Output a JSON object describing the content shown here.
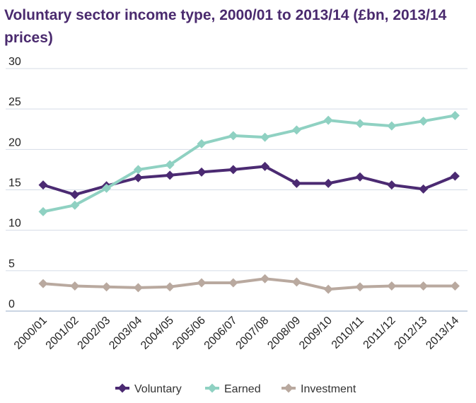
{
  "title": "Voluntary sector income type, 2000/01 to 2013/14 (£bn, 2013/14 prices)",
  "chart_data": {
    "type": "line",
    "title": "Voluntary sector income type, 2000/01 to 2013/14 (£bn, 2013/14 prices)",
    "xlabel": "",
    "ylabel": "",
    "ylim": [
      0,
      30
    ],
    "yticks": [
      "0",
      "5",
      "10",
      "15",
      "20",
      "25",
      "30"
    ],
    "grid": true,
    "legend_position": "bottom",
    "categories": [
      "2000/01",
      "2001/02",
      "2002/03",
      "2003/04",
      "2004/05",
      "2005/06",
      "2006/07",
      "2007/08",
      "2008/09",
      "2009/10",
      "2010/11",
      "2011/12",
      "2012/13",
      "2013/14"
    ],
    "series": [
      {
        "name": "Voluntary",
        "color": "#4b2a72",
        "values": [
          15.6,
          14.4,
          15.5,
          16.5,
          16.8,
          17.2,
          17.5,
          17.9,
          15.8,
          15.8,
          16.6,
          15.6,
          15.1,
          16.7
        ]
      },
      {
        "name": "Earned",
        "color": "#8fd1c2",
        "values": [
          12.3,
          13.1,
          15.2,
          17.5,
          18.1,
          20.7,
          21.7,
          21.5,
          22.4,
          23.6,
          23.2,
          22.9,
          23.5,
          24.2
        ]
      },
      {
        "name": "Investment",
        "color": "#b9a99f",
        "values": [
          3.4,
          3.1,
          3.0,
          2.9,
          3.0,
          3.5,
          3.5,
          4.0,
          3.6,
          2.7,
          3.0,
          3.1,
          3.1,
          3.1
        ]
      }
    ]
  }
}
